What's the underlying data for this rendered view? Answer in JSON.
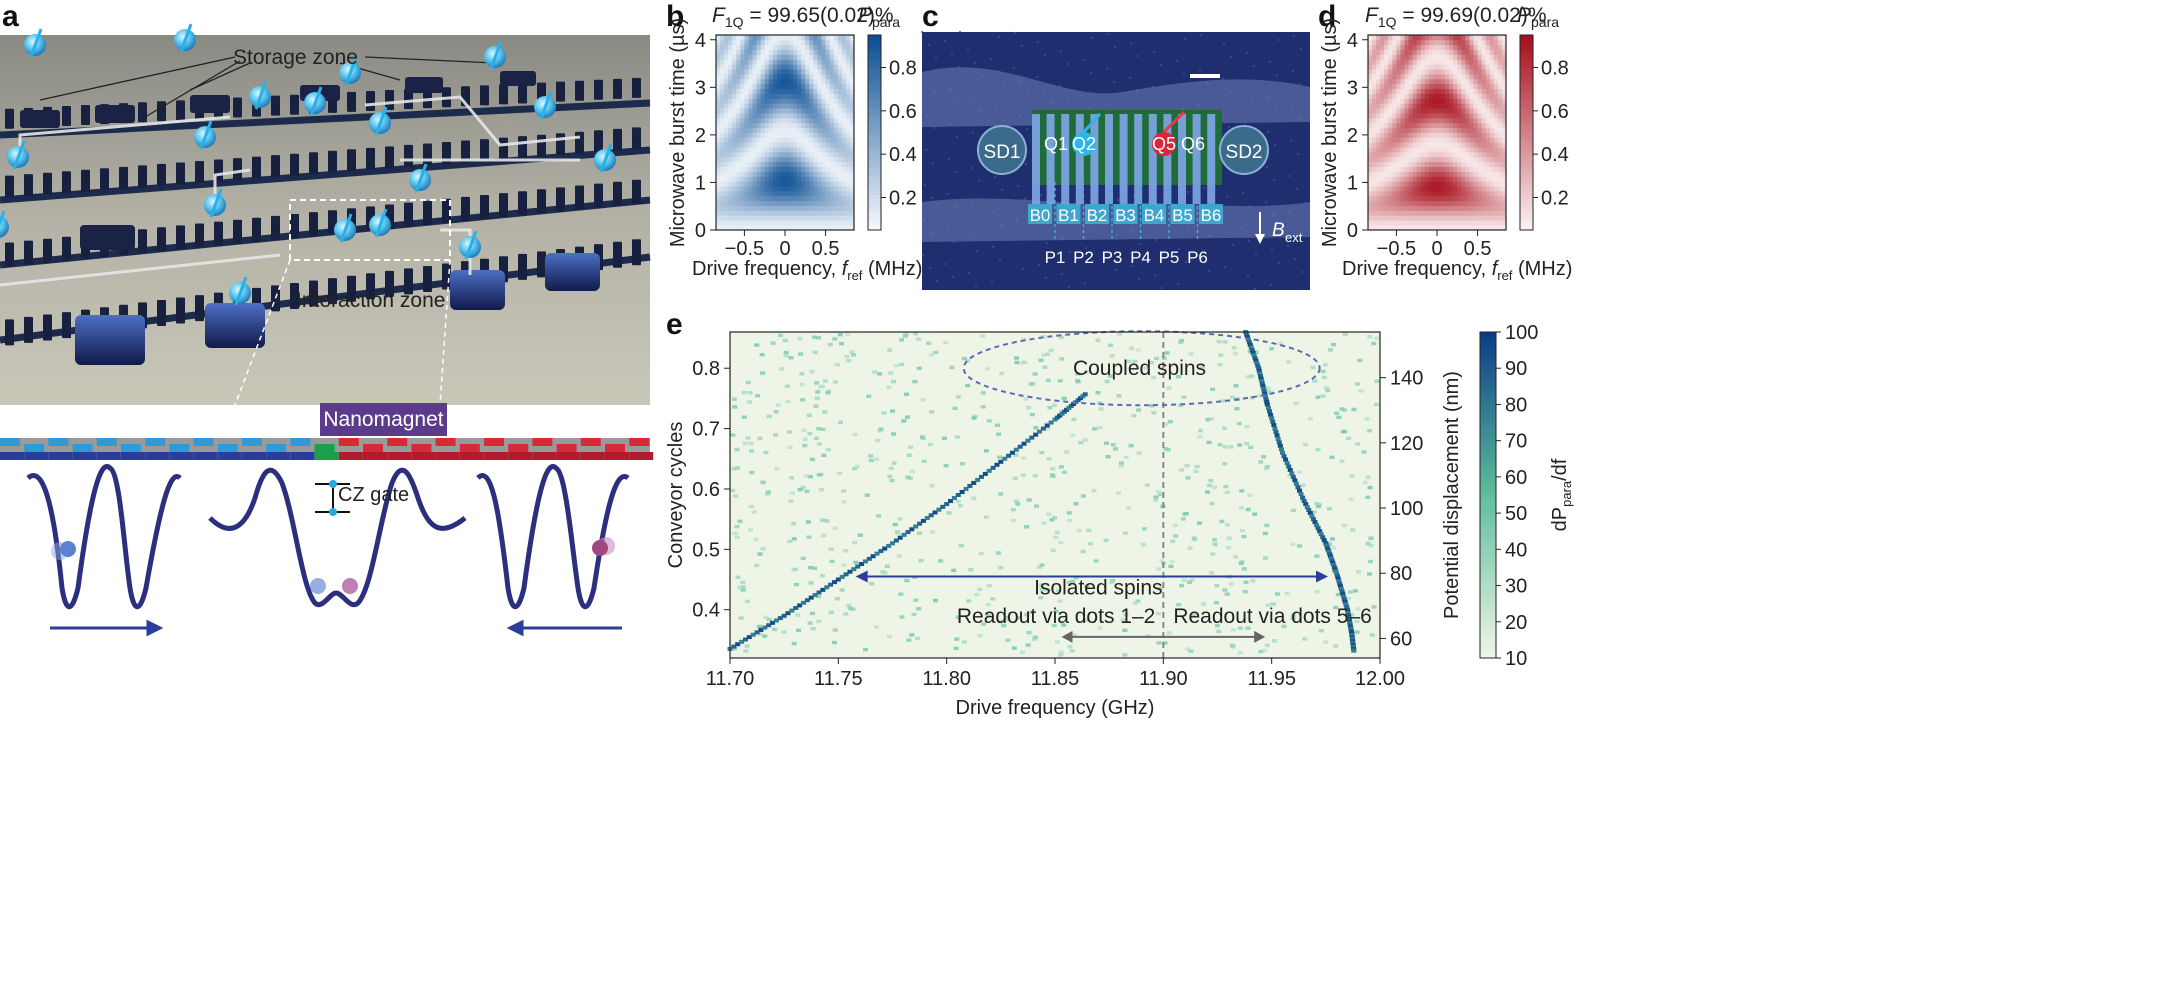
{
  "panel_letters": {
    "a": "a",
    "b": "b",
    "c": "c",
    "d": "d",
    "e": "e"
  },
  "panel_a": {
    "storage_label": "Storage zone",
    "interaction_label": "Interaction zone",
    "nanomagnet_label": "Nanomagnet",
    "cz_label": "CZ gate"
  },
  "panel_b": {
    "title_prefix": "F",
    "title_sub": "1Q",
    "title_value": " = 99.65(0.02)%",
    "cbar_name_prefix": "P",
    "cbar_name_sub": "para",
    "ylabel": "Microwave burst time (µs)",
    "xlabel_prefix": "Drive frequency, ",
    "xlabel_var": "f",
    "xlabel_sub": "ref",
    "xlabel_unit": " (MHz)",
    "xticks": [
      "−0.5",
      "0",
      "0.5"
    ],
    "yticks": [
      "0",
      "1",
      "2",
      "3",
      "4"
    ],
    "cticks": [
      "0.2",
      "0.4",
      "0.6",
      "0.8"
    ],
    "color_low": "#f4f8fc",
    "color_high": "#0c4f94"
  },
  "panel_c": {
    "labels": [
      "SD1",
      "Q1",
      "Q2",
      "Q5",
      "Q6",
      "SD2"
    ],
    "barriers": [
      "B0",
      "B1",
      "B2",
      "B3",
      "B4",
      "B5",
      "B6"
    ],
    "plungers": [
      "P1",
      "P2",
      "P3",
      "P4",
      "P5",
      "P6"
    ],
    "bext_prefix": "B",
    "bext_sub": "ext"
  },
  "panel_d": {
    "title_prefix": "F",
    "title_sub": "1Q",
    "title_value": " = 99.69(0.02)%",
    "cbar_name_prefix": "P",
    "cbar_name_sub": "para",
    "ylabel": "Microwave burst time (µs)",
    "xlabel_prefix": "Drive frequency, ",
    "xlabel_var": "f",
    "xlabel_sub": "ref",
    "xlabel_unit": " (MHz)",
    "xticks": [
      "−0.5",
      "0",
      "0.5"
    ],
    "yticks": [
      "0",
      "1",
      "2",
      "3",
      "4"
    ],
    "cticks": [
      "0.2",
      "0.4",
      "0.6",
      "0.8"
    ],
    "color_low": "#fbf2f2",
    "color_high": "#a80f1c"
  },
  "panel_e": {
    "ylabel": "Conveyor cycles",
    "xlabel": "Drive frequency (GHz)",
    "y2label": "Potential displacement (nm)",
    "cbar_label": "dP",
    "cbar_label_sub": "para",
    "cbar_label_tail": "/df",
    "coupled_label": "Coupled spins",
    "isolated_label": "Isolated spins",
    "readout_left": "Readout via dots 1–2",
    "readout_right": "Readout via dots 5–6",
    "xticks": [
      "11.70",
      "11.75",
      "11.80",
      "11.85",
      "11.90",
      "11.95",
      "12.00"
    ],
    "yticks": [
      "0.4",
      "0.5",
      "0.6",
      "0.7",
      "0.8"
    ],
    "y2ticks": [
      "60",
      "80",
      "100",
      "120",
      "140"
    ],
    "cticks": [
      "10",
      "20",
      "30",
      "40",
      "50",
      "60",
      "70",
      "80",
      "90",
      "100"
    ]
  },
  "chart_data": [
    {
      "type": "heatmap",
      "panel": "b",
      "title": "F1Q = 99.65(0.02)%",
      "xlabel": "Drive frequency, fref (MHz)",
      "ylabel": "Microwave burst time (µs)",
      "colorbar_label": "Ppara",
      "xlim": [
        -0.85,
        0.85
      ],
      "ylim": [
        0,
        4.1
      ],
      "clim": [
        0.05,
        0.95
      ],
      "rabi_frequency_mhz": 0.48,
      "colormap": "white-to-blue"
    },
    {
      "type": "heatmap",
      "panel": "d",
      "title": "F1Q = 99.69(0.02)%",
      "xlabel": "Drive frequency, fref (MHz)",
      "ylabel": "Microwave burst time (µs)",
      "colorbar_label": "Ppara",
      "xlim": [
        -0.85,
        0.85
      ],
      "ylim": [
        0,
        4.1
      ],
      "clim": [
        0.05,
        0.95
      ],
      "rabi_frequency_mhz": 0.55,
      "colormap": "white-to-red"
    },
    {
      "type": "heatmap",
      "panel": "e",
      "xlabel": "Drive frequency (GHz)",
      "ylabel": "Conveyor cycles",
      "y2label": "Potential displacement (nm)",
      "colorbar_label": "dPpara/df",
      "xlim": [
        11.7,
        12.0
      ],
      "ylim": [
        0.32,
        0.86
      ],
      "y2lim": [
        54,
        154
      ],
      "clim": [
        10,
        100
      ],
      "colormap": "light-green-to-dark-blue",
      "series": [
        {
          "name": "left resonance",
          "x": [
            11.7,
            11.725,
            11.75,
            11.775,
            11.8,
            11.825,
            11.85,
            11.865
          ],
          "y": [
            0.335,
            0.39,
            0.45,
            0.51,
            0.575,
            0.645,
            0.715,
            0.76
          ]
        },
        {
          "name": "right resonance",
          "x": [
            11.938,
            11.944,
            11.948,
            11.955,
            11.965,
            11.975,
            11.98,
            11.985,
            11.987,
            11.988
          ],
          "y": [
            0.86,
            0.8,
            0.74,
            0.66,
            0.58,
            0.51,
            0.46,
            0.4,
            0.36,
            0.33
          ]
        }
      ],
      "reference_line_x": 11.9
    }
  ]
}
